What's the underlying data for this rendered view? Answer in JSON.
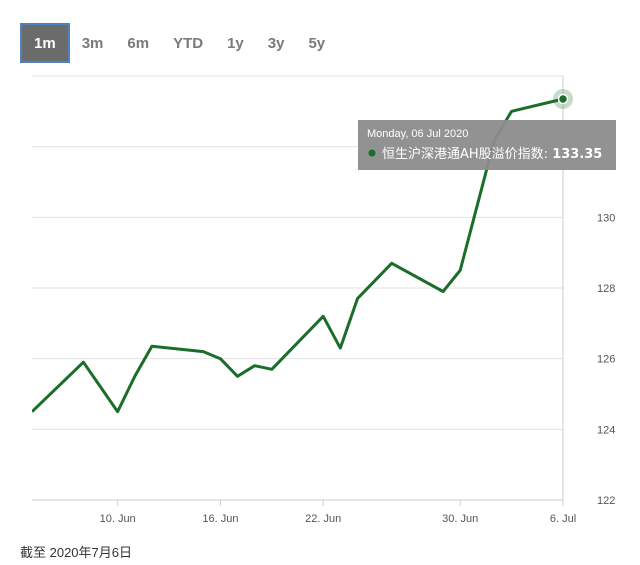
{
  "range_selector": {
    "buttons": [
      "1m",
      "3m",
      "6m",
      "YTD",
      "1y",
      "3y",
      "5y"
    ],
    "selected": "1m"
  },
  "tooltip": {
    "date": "Monday, 06 Jul 2020",
    "series_label": "恒生沪深港通AH股溢价指数:",
    "value": "133.35"
  },
  "footnote": "截至 2020年7月6日",
  "colors": {
    "line": "#1a6e2a",
    "tooltip_bg": "#8c8c8c",
    "active_button_bg": "#6b6b6b",
    "active_button_border": "#4f81bd"
  },
  "chart_data": {
    "type": "line",
    "x": [
      "2020-06-05",
      "2020-06-08",
      "2020-06-09",
      "2020-06-10",
      "2020-06-11",
      "2020-06-12",
      "2020-06-15",
      "2020-06-16",
      "2020-06-17",
      "2020-06-18",
      "2020-06-19",
      "2020-06-22",
      "2020-06-23",
      "2020-06-24",
      "2020-06-26",
      "2020-06-29",
      "2020-06-30",
      "2020-07-02",
      "2020-07-03",
      "2020-07-06"
    ],
    "series": [
      {
        "values": [
          124.5,
          125.9,
          125.2,
          124.5,
          125.5,
          126.35,
          126.2,
          126.0,
          125.5,
          125.8,
          125.7,
          127.2,
          126.3,
          127.7,
          128.7,
          127.9,
          128.5,
          132.2,
          133.0,
          133.35
        ]
      }
    ],
    "xticks": [
      "10. Jun",
      "16. Jun",
      "22. Jun",
      "30. Jun",
      "6. Jul"
    ],
    "xtick_dates": [
      "2020-06-10",
      "2020-06-16",
      "2020-06-22",
      "2020-06-30",
      "2020-07-06"
    ],
    "yticks": [
      122,
      124,
      126,
      128,
      130
    ],
    "ylim": [
      122,
      134
    ],
    "y_axis_side": "right",
    "grid": true
  }
}
